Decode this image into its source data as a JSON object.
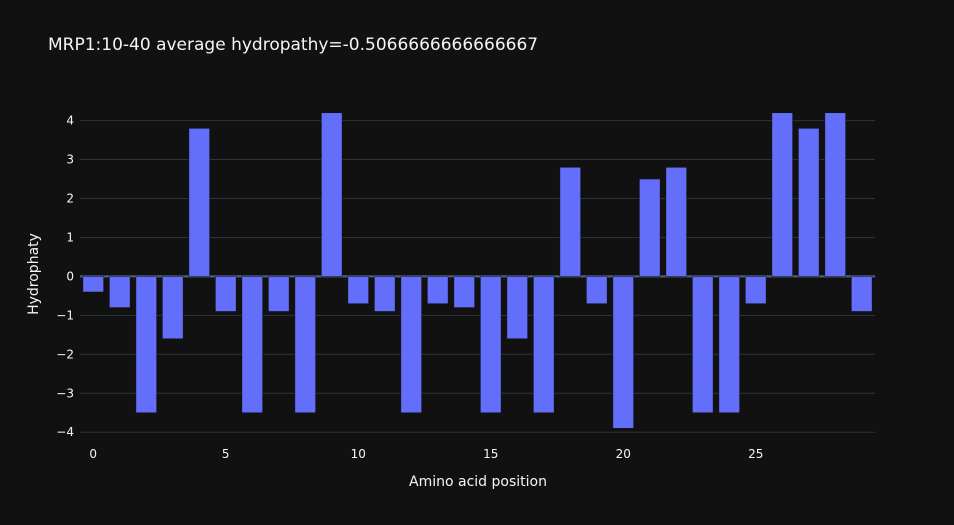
{
  "chart_data": {
    "type": "bar",
    "title": "MRP1:10-40 average hydropathy=-0.5066666666666667",
    "xlabel": "Amino acid position",
    "ylabel": "Hydrophaty",
    "x": [
      0,
      1,
      2,
      3,
      4,
      5,
      6,
      7,
      8,
      9,
      10,
      11,
      12,
      13,
      14,
      15,
      16,
      17,
      18,
      19,
      20,
      21,
      22,
      23,
      24,
      25,
      26,
      27,
      28,
      29
    ],
    "values": [
      -0.4,
      -0.8,
      -3.5,
      -1.6,
      3.8,
      -0.9,
      -3.5,
      -0.9,
      -3.5,
      4.2,
      -0.7,
      -0.9,
      -3.5,
      -0.7,
      -0.8,
      -3.5,
      -1.6,
      -3.5,
      2.8,
      -0.7,
      -3.9,
      2.5,
      2.8,
      -3.5,
      -3.5,
      -0.7,
      4.2,
      3.8,
      4.2,
      -0.9
    ],
    "xlim": [
      -0.5,
      29.5
    ],
    "ylim": [
      -4.2,
      4.4
    ],
    "x_ticks": [
      0,
      5,
      10,
      15,
      20,
      25
    ],
    "y_ticks": [
      -4,
      -3,
      -2,
      -1,
      0,
      1,
      2,
      3,
      4
    ],
    "y_tick_labels": [
      "−4",
      "−3",
      "−2",
      "−1",
      "0",
      "1",
      "2",
      "3",
      "4"
    ],
    "bar_color": "#636efa",
    "background_color": "#111111",
    "grid": true
  }
}
